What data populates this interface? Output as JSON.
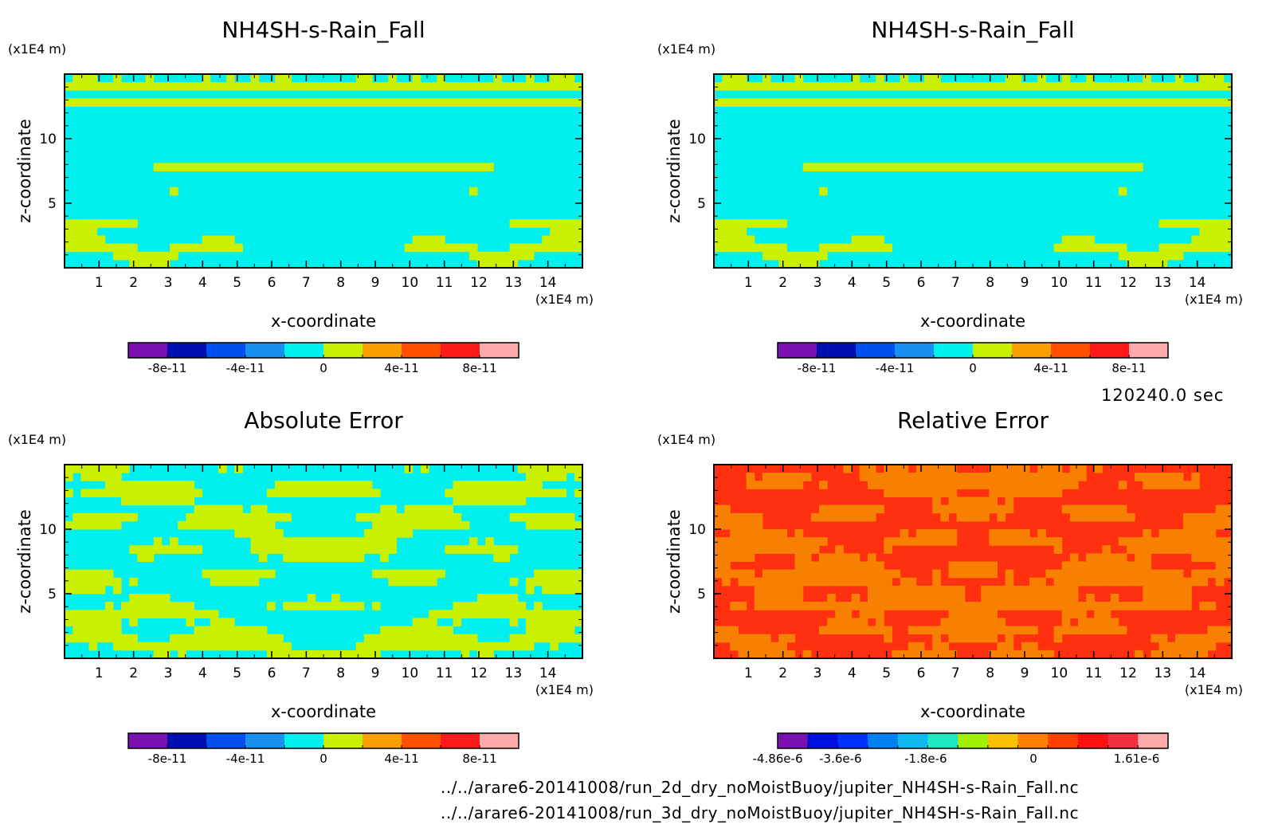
{
  "time_label": "120240.0 sec",
  "files": [
    "../../arare6-20141008/run_2d_dry_noMoistBuoy/jupiter_NH4SH-s-Rain_Fall.nc",
    "../../arare6-20141008/run_3d_dry_noMoistBuoy/jupiter_NH4SH-s-Rain_Fall.nc"
  ],
  "chart_data": [
    {
      "type": "heatmap",
      "title": "NH4SH-s-Rain_Fall",
      "xlabel": "x-coordinate",
      "ylabel": "z-coordinate",
      "x_unit": "(x1E4 m)",
      "y_unit": "(x1E4 m)",
      "xlim": [
        0,
        15
      ],
      "ylim": [
        0,
        15
      ],
      "xticks": [
        "1",
        "2",
        "3",
        "4",
        "5",
        "6",
        "7",
        "8",
        "9",
        "10",
        "11",
        "12",
        "13",
        "14"
      ],
      "yticks": [
        "5",
        "10"
      ],
      "colorbar": {
        "colors": [
          "#7a10b0",
          "#0010b0",
          "#0050f0",
          "#1890f0",
          "#00f0f0",
          "#c8f000",
          "#f8a000",
          "#ff5000",
          "#ff1a1a",
          "#ffaaaa"
        ],
        "ticks": [
          "-8e-11",
          "-4e-11",
          "0",
          "4e-11",
          "8e-11"
        ]
      },
      "dominant_color": "#00f0f0",
      "secondary_color": "#c8f000"
    },
    {
      "type": "heatmap",
      "title": "NH4SH-s-Rain_Fall",
      "xlabel": "x-coordinate",
      "ylabel": "z-coordinate",
      "x_unit": "(x1E4 m)",
      "y_unit": "(x1E4 m)",
      "xlim": [
        0,
        15
      ],
      "ylim": [
        0,
        15
      ],
      "xticks": [
        "1",
        "2",
        "3",
        "4",
        "5",
        "6",
        "7",
        "8",
        "9",
        "10",
        "11",
        "12",
        "13",
        "14"
      ],
      "yticks": [
        "5",
        "10"
      ],
      "colorbar": {
        "colors": [
          "#7a10b0",
          "#0010b0",
          "#0050f0",
          "#1890f0",
          "#00f0f0",
          "#c8f000",
          "#f8a000",
          "#ff5000",
          "#ff1a1a",
          "#ffaaaa"
        ],
        "ticks": [
          "-8e-11",
          "-4e-11",
          "0",
          "4e-11",
          "8e-11"
        ]
      },
      "dominant_color": "#00f0f0",
      "secondary_color": "#c8f000"
    },
    {
      "type": "heatmap",
      "title": "Absolute Error",
      "xlabel": "x-coordinate",
      "ylabel": "z-coordinate",
      "x_unit": "(x1E4 m)",
      "y_unit": "(x1E4 m)",
      "xlim": [
        0,
        15
      ],
      "ylim": [
        0,
        15
      ],
      "xticks": [
        "1",
        "2",
        "3",
        "4",
        "5",
        "6",
        "7",
        "8",
        "9",
        "10",
        "11",
        "12",
        "13",
        "14"
      ],
      "yticks": [
        "5",
        "10"
      ],
      "colorbar": {
        "colors": [
          "#7a10b0",
          "#0010b0",
          "#0050f0",
          "#1890f0",
          "#00f0f0",
          "#c8f000",
          "#f8a000",
          "#ff5000",
          "#ff1a1a",
          "#ffaaaa"
        ],
        "ticks": [
          "-8e-11",
          "-4e-11",
          "0",
          "4e-11",
          "8e-11"
        ]
      },
      "dominant_color": "#00f0f0",
      "secondary_color": "#c8f000"
    },
    {
      "type": "heatmap",
      "title": "Relative Error",
      "xlabel": "x-coordinate",
      "ylabel": "z-coordinate",
      "x_unit": "(x1E4 m)",
      "y_unit": "(x1E4 m)",
      "xlim": [
        0,
        15
      ],
      "ylim": [
        0,
        15
      ],
      "xticks": [
        "1",
        "2",
        "3",
        "4",
        "5",
        "6",
        "7",
        "8",
        "9",
        "10",
        "11",
        "12",
        "13",
        "14"
      ],
      "yticks": [
        "5",
        "10"
      ],
      "colorbar": {
        "colors": [
          "#7a10b0",
          "#0010e0",
          "#0030ff",
          "#0080f0",
          "#10b8f0",
          "#20e8c0",
          "#a0f000",
          "#f8c000",
          "#ff8000",
          "#ff4000",
          "#ff1010",
          "#f03040",
          "#ffaaaa"
        ],
        "ticks": [
          "-4.86e-6",
          "-3.6e-6",
          "-1.8e-6",
          "0",
          "1.61e-6"
        ]
      },
      "dominant_color": "#ff3010",
      "secondary_color": "#f88000"
    }
  ]
}
